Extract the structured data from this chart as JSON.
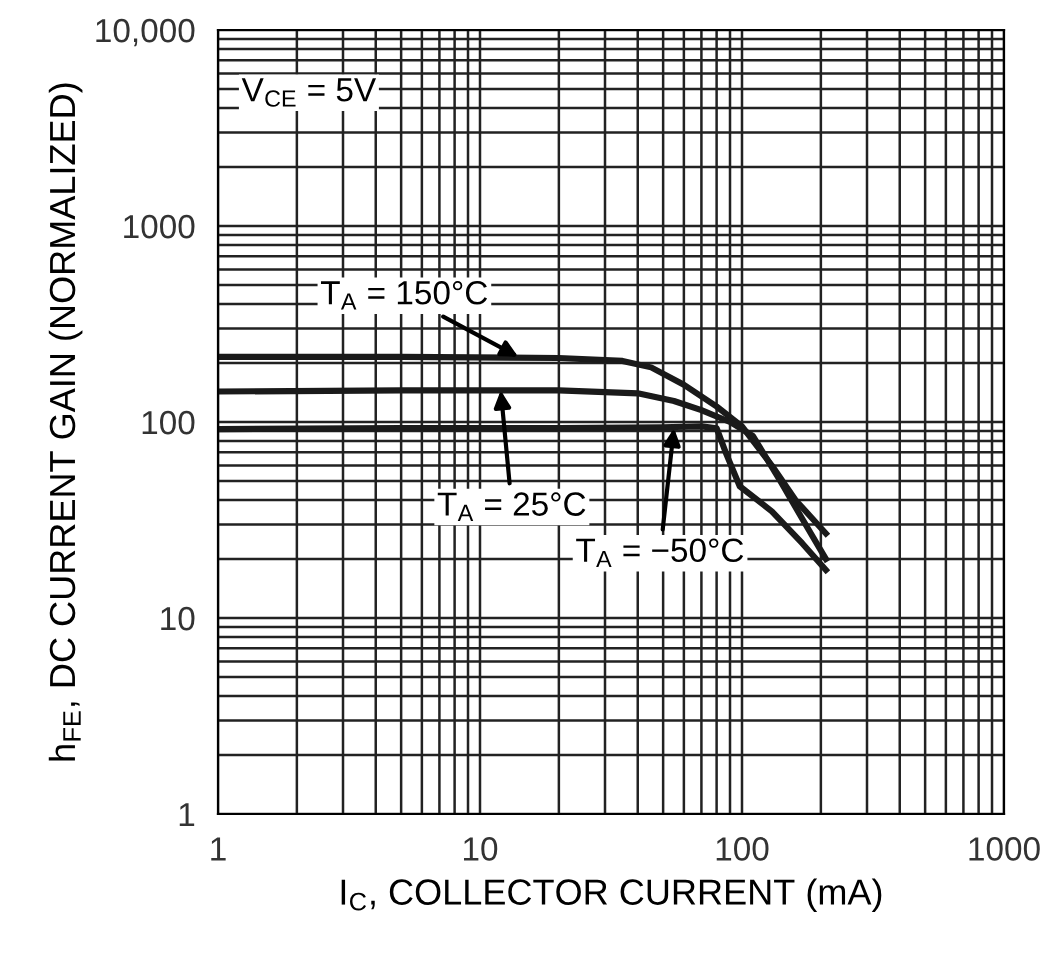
{
  "chart_data": {
    "type": "line",
    "xlabel": "I$_{C}$, COLLECTOR CURRENT (mA)",
    "ylabel": "h$_{FE}$, DC CURRENT GAIN (NORMALIZED)",
    "log": "xy",
    "grid": true,
    "marker": "none",
    "line_style": "solid",
    "xlim": [
      1,
      1000
    ],
    "xticks": [
      1,
      10,
      100,
      1000
    ],
    "ylim": [
      1,
      10000
    ],
    "yticks": [
      1,
      10,
      100,
      1000,
      {
        "value": 10000,
        "label": "10,000"
      }
    ],
    "series": [
      {
        "color": "#1a1a1a",
        "x": [
          1,
          5,
          20,
          35,
          45,
          60,
          80,
          100,
          130,
          160,
          209
        ],
        "values": [
          215,
          215,
          212,
          205,
          190,
          155,
          120,
          95,
          60,
          40,
          27
        ]
      },
      {
        "color": "#1a1a1a",
        "x": [
          1,
          5,
          20,
          40,
          55,
          70,
          90,
          110,
          140,
          170,
          209
        ],
        "values": [
          143,
          145,
          145,
          140,
          128,
          115,
          100,
          85,
          50,
          32,
          20
        ]
      },
      {
        "color": "#1a1a1a",
        "x": [
          1,
          5,
          20,
          50,
          70,
          80,
          87,
          98,
          130,
          170,
          209
        ],
        "values": [
          92,
          93,
          93,
          94,
          95,
          93,
          69,
          47,
          35,
          24,
          17.6
        ]
      }
    ],
    "annotations": [
      "V$_{CE}$ = 5V",
      {
        "text": "T$_{A}$ = 150°C",
        "x": 14,
        "y": 215
      },
      {
        "text": "T$_{A}$ = 25°C",
        "x": 12,
        "y": 145
      },
      {
        "text": "T$_{A}$ = −50°C",
        "x": 55,
        "y": 93
      }
    ]
  }
}
